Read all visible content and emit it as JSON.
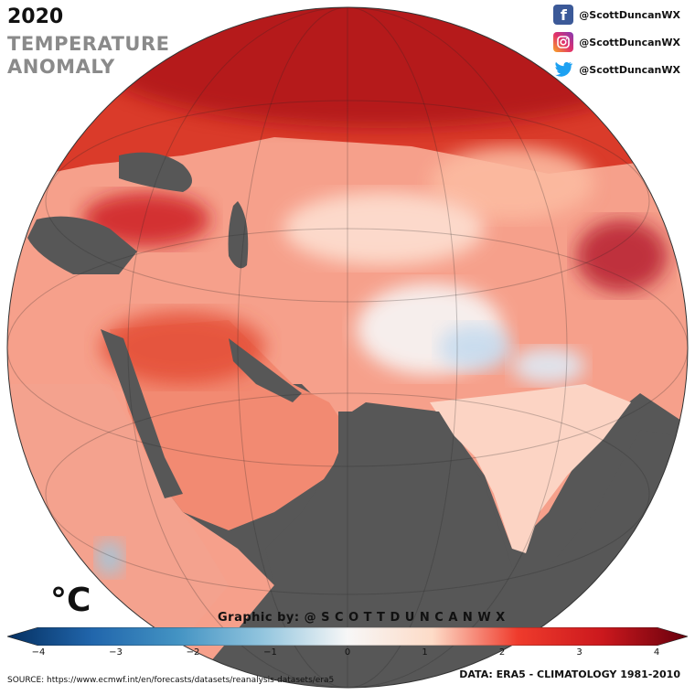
{
  "year": "2020",
  "title_line1": "TEMPERATURE",
  "title_line2": "ANOMALY",
  "social": [
    {
      "icon": "facebook-icon",
      "handle": "@ScottDuncanWX",
      "color": "#3b5998"
    },
    {
      "icon": "instagram-icon",
      "handle": "@ScottDuncanWX",
      "color": "#c13584"
    },
    {
      "icon": "twitter-icon",
      "handle": "@ScottDuncanWX",
      "color": "#1da1f2"
    }
  ],
  "unit": "°C",
  "credit": "Graphic by: @ S C O T T D U N C A N W X",
  "colorbar": {
    "min": -4,
    "max": 4,
    "ticks": [
      "−4",
      "−3",
      "−2",
      "−1",
      "0",
      "1",
      "2",
      "3",
      "4"
    ],
    "colors": [
      "#053061",
      "#2166ac",
      "#4393c3",
      "#92c5de",
      "#f7f7f7",
      "#fddbc7",
      "#ef3b2c",
      "#cb181d",
      "#67000d"
    ]
  },
  "source": "SOURCE: https://www.ecmwf.int/en/forecasts/datasets/reanalysis-datasets/era5",
  "data_note": "DATA: ERA5 - CLIMATOLOGY 1981-2010",
  "land_color": "#555555"
}
